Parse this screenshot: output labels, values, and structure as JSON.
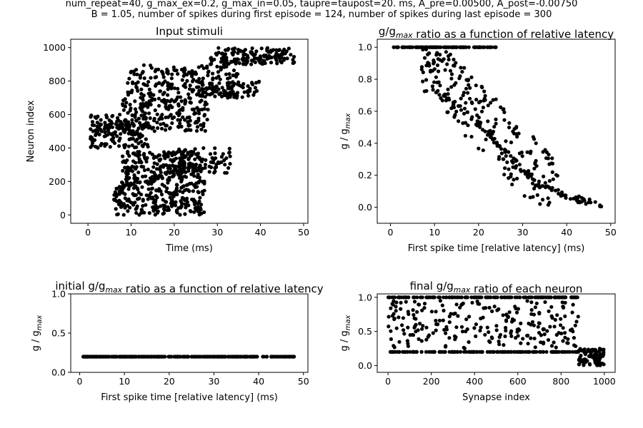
{
  "figure": {
    "suptitle_line1": "num_repeat=40, g_max_ex=0.2, g_max_in=0.05, taupre=taupost=20. ms, A_pre=0.00500, A_post=-0.00750",
    "suptitle_line2": "B = 1.05, number of spikes during first episode = 124, number of spikes during last episode = 300"
  },
  "chart_data": [
    {
      "id": "input-stimuli",
      "type": "scatter",
      "title": "Input stimuli",
      "xlabel": "Time (ms)",
      "ylabel": "Neuron index",
      "xlim": [
        -4,
        51
      ],
      "ylim": [
        -50,
        1050
      ],
      "xticks": [
        0,
        10,
        20,
        30,
        40,
        50
      ],
      "yticks": [
        0,
        200,
        400,
        600,
        800,
        1000
      ],
      "marker_color": "#000000",
      "points_from_clusters": true,
      "clusters": [
        {
          "x": [
            6,
            27
          ],
          "y": [
            0,
            200
          ],
          "n": 260
        },
        {
          "x": [
            8,
            26
          ],
          "y": [
            200,
            380
          ],
          "n": 200
        },
        {
          "x": [
            19,
            33
          ],
          "y": [
            250,
            400
          ],
          "n": 90
        },
        {
          "x": [
            0.5,
            14
          ],
          "y": [
            400,
            600
          ],
          "n": 170
        },
        {
          "x": [
            8,
            28
          ],
          "y": [
            500,
            700
          ],
          "n": 200
        },
        {
          "x": [
            9,
            35
          ],
          "y": [
            700,
            900
          ],
          "n": 190
        },
        {
          "x": [
            25,
            40
          ],
          "y": [
            700,
            800
          ],
          "n": 80
        },
        {
          "x": [
            28,
            48
          ],
          "y": [
            900,
            1000
          ],
          "n": 150
        }
      ]
    },
    {
      "id": "ratio-vs-latency",
      "type": "scatter",
      "title": "g/g<sub>max</sub> ratio as a function of relative latency",
      "title_text": "g/gmax ratio as a function of relative latency",
      "xlabel": "First spike time [relative latency] (ms)",
      "ylabel": "g / g_max",
      "xlim": [
        -3,
        51
      ],
      "ylim": [
        -0.1,
        1.05
      ],
      "xticks": [
        0,
        10,
        20,
        30,
        40,
        50
      ],
      "yticks": [
        0.0,
        0.2,
        0.4,
        0.6,
        0.8,
        1.0
      ],
      "plateau": {
        "x": [
          0.5,
          24
        ],
        "y": 1.0,
        "n": 120
      },
      "trend": [
        [
          12,
          0.7
        ],
        [
          20,
          0.52
        ],
        [
          27,
          0.32
        ],
        [
          33,
          0.15
        ],
        [
          40,
          0.07
        ],
        [
          48,
          0.01
        ]
      ],
      "scatter_region": {
        "x": [
          7,
          38
        ],
        "y": [
          0.0,
          1.0
        ],
        "n": 230
      }
    },
    {
      "id": "initial-ratio",
      "type": "scatter",
      "title": "initial g/g<sub>max</sub> ratio as a function of relative latency",
      "title_text": "initial g/gmax ratio as a function of relative latency",
      "xlabel": "First spike time [relative latency] (ms)",
      "ylabel": "g / g_max",
      "xlim": [
        -2,
        51
      ],
      "ylim": [
        0.0,
        1.0
      ],
      "xticks": [
        0,
        10,
        20,
        30,
        40,
        50
      ],
      "yticks": [
        0.0,
        0.5,
        1.0
      ],
      "constant_y": 0.2,
      "x_range": [
        0.5,
        48
      ],
      "n": 300
    },
    {
      "id": "final-ratio",
      "type": "scatter",
      "title": "final g/g<sub>max</sub> ratio of each neuron",
      "title_text": "final g/gmax ratio of each neuron",
      "xlabel": "Synapse index",
      "ylabel": "g / g_max",
      "xlim": [
        -50,
        1050
      ],
      "ylim": [
        -0.1,
        1.05
      ],
      "xticks": [
        0,
        200,
        400,
        600,
        800,
        1000
      ],
      "yticks": [
        0.0,
        0.5,
        1.0
      ],
      "rows": [
        {
          "y": 1.0,
          "n": 160
        },
        {
          "y": 0.2,
          "n": 150
        }
      ],
      "scatter_region": {
        "x": [
          0,
          880
        ],
        "y": [
          0.25,
          0.95
        ],
        "n": 240
      },
      "cluster": {
        "x": [
          880,
          1000
        ],
        "y": [
          0.0,
          0.25
        ],
        "n": 90
      }
    }
  ]
}
